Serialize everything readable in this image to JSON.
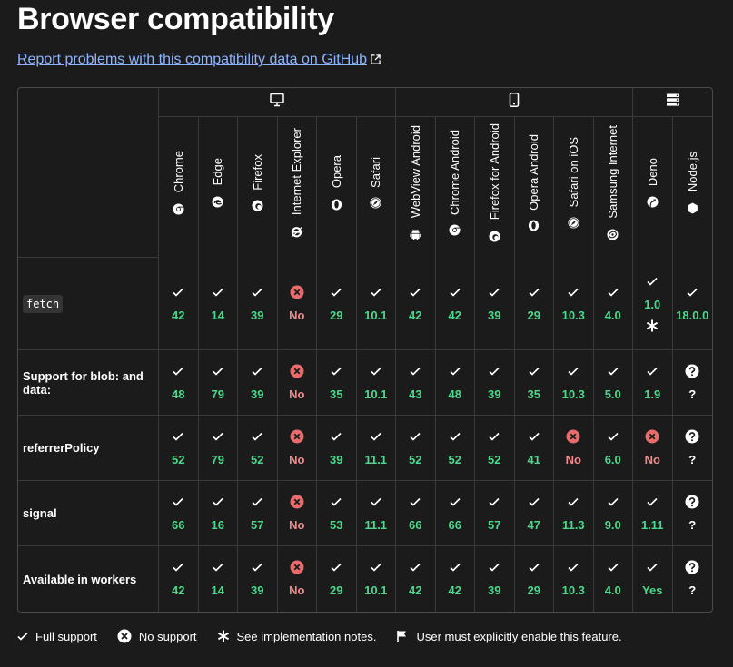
{
  "page": {
    "title": "Browser compatibility",
    "report_link": "Report problems with this compatibility data on GitHub"
  },
  "groups": [
    {
      "name": "desktop",
      "icon": "desktop-icon",
      "span": 6
    },
    {
      "name": "mobile",
      "icon": "mobile-icon",
      "span": 6
    },
    {
      "name": "server",
      "icon": "server-icon",
      "span": 2
    }
  ],
  "browsers": [
    {
      "name": "Chrome",
      "icon": "chrome-icon"
    },
    {
      "name": "Edge",
      "icon": "edge-icon"
    },
    {
      "name": "Firefox",
      "icon": "firefox-icon"
    },
    {
      "name": "Internet Explorer",
      "icon": "ie-icon"
    },
    {
      "name": "Opera",
      "icon": "opera-icon"
    },
    {
      "name": "Safari",
      "icon": "safari-icon"
    },
    {
      "name": "WebView Android",
      "icon": "android-icon"
    },
    {
      "name": "Chrome Android",
      "icon": "chrome-icon"
    },
    {
      "name": "Firefox for Android",
      "icon": "firefox-icon"
    },
    {
      "name": "Opera Android",
      "icon": "opera-icon"
    },
    {
      "name": "Safari on iOS",
      "icon": "safari-icon"
    },
    {
      "name": "Samsung Internet",
      "icon": "samsung-icon"
    },
    {
      "name": "Deno",
      "icon": "deno-icon"
    },
    {
      "name": "Node.js",
      "icon": "nodejs-icon"
    }
  ],
  "features": [
    {
      "name": "fetch",
      "code": true,
      "support": [
        {
          "s": "yes",
          "v": "42"
        },
        {
          "s": "yes",
          "v": "14"
        },
        {
          "s": "yes",
          "v": "39"
        },
        {
          "s": "no",
          "v": "No"
        },
        {
          "s": "yes",
          "v": "29"
        },
        {
          "s": "yes",
          "v": "10.1"
        },
        {
          "s": "yes",
          "v": "42"
        },
        {
          "s": "yes",
          "v": "42"
        },
        {
          "s": "yes",
          "v": "39"
        },
        {
          "s": "yes",
          "v": "29"
        },
        {
          "s": "yes",
          "v": "10.3"
        },
        {
          "s": "yes",
          "v": "4.0"
        },
        {
          "s": "yes",
          "v": "1.0",
          "note": true
        },
        {
          "s": "yes",
          "v": "18.0.0"
        }
      ]
    },
    {
      "name": "Support for blob: and data:",
      "code": false,
      "support": [
        {
          "s": "yes",
          "v": "48"
        },
        {
          "s": "yes",
          "v": "79"
        },
        {
          "s": "yes",
          "v": "39"
        },
        {
          "s": "no",
          "v": "No"
        },
        {
          "s": "yes",
          "v": "35"
        },
        {
          "s": "yes",
          "v": "10.1"
        },
        {
          "s": "yes",
          "v": "43"
        },
        {
          "s": "yes",
          "v": "48"
        },
        {
          "s": "yes",
          "v": "39"
        },
        {
          "s": "yes",
          "v": "35"
        },
        {
          "s": "yes",
          "v": "10.3"
        },
        {
          "s": "yes",
          "v": "5.0"
        },
        {
          "s": "yes",
          "v": "1.9"
        },
        {
          "s": "unk",
          "v": "?"
        }
      ]
    },
    {
      "name": "referrerPolicy",
      "code": false,
      "support": [
        {
          "s": "yes",
          "v": "52"
        },
        {
          "s": "yes",
          "v": "79"
        },
        {
          "s": "yes",
          "v": "52"
        },
        {
          "s": "no",
          "v": "No"
        },
        {
          "s": "yes",
          "v": "39"
        },
        {
          "s": "yes",
          "v": "11.1"
        },
        {
          "s": "yes",
          "v": "52"
        },
        {
          "s": "yes",
          "v": "52"
        },
        {
          "s": "yes",
          "v": "52"
        },
        {
          "s": "yes",
          "v": "41"
        },
        {
          "s": "no",
          "v": "No"
        },
        {
          "s": "yes",
          "v": "6.0"
        },
        {
          "s": "no",
          "v": "No"
        },
        {
          "s": "unk",
          "v": "?"
        }
      ]
    },
    {
      "name": "signal",
      "code": false,
      "support": [
        {
          "s": "yes",
          "v": "66"
        },
        {
          "s": "yes",
          "v": "16"
        },
        {
          "s": "yes",
          "v": "57"
        },
        {
          "s": "no",
          "v": "No"
        },
        {
          "s": "yes",
          "v": "53"
        },
        {
          "s": "yes",
          "v": "11.1"
        },
        {
          "s": "yes",
          "v": "66"
        },
        {
          "s": "yes",
          "v": "66"
        },
        {
          "s": "yes",
          "v": "57"
        },
        {
          "s": "yes",
          "v": "47"
        },
        {
          "s": "yes",
          "v": "11.3"
        },
        {
          "s": "yes",
          "v": "9.0"
        },
        {
          "s": "yes",
          "v": "1.11"
        },
        {
          "s": "unk",
          "v": "?"
        }
      ]
    },
    {
      "name": "Available in workers",
      "code": false,
      "support": [
        {
          "s": "yes",
          "v": "42"
        },
        {
          "s": "yes",
          "v": "14"
        },
        {
          "s": "yes",
          "v": "39"
        },
        {
          "s": "no",
          "v": "No"
        },
        {
          "s": "yes",
          "v": "29"
        },
        {
          "s": "yes",
          "v": "10.1"
        },
        {
          "s": "yes",
          "v": "42"
        },
        {
          "s": "yes",
          "v": "42"
        },
        {
          "s": "yes",
          "v": "39"
        },
        {
          "s": "yes",
          "v": "29"
        },
        {
          "s": "yes",
          "v": "10.3"
        },
        {
          "s": "yes",
          "v": "4.0"
        },
        {
          "s": "yes",
          "v": "Yes"
        },
        {
          "s": "unk",
          "v": "?"
        }
      ]
    }
  ],
  "legend": {
    "full": "Full support",
    "none": "No support",
    "notes": "See implementation notes.",
    "flag": "User must explicitly enable this feature."
  },
  "colors": {
    "background": "#1b1b1b",
    "yes": "#4bd98b",
    "no": "#f18b8b",
    "no_icon": "#e86c6c",
    "link": "#8cb4ff"
  }
}
